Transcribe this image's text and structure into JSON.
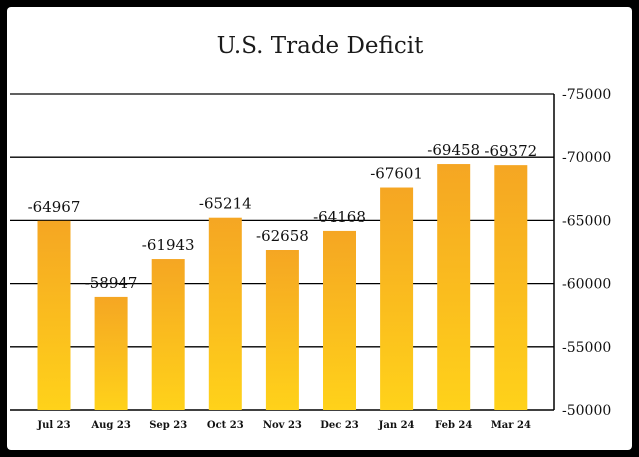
{
  "chart_data": {
    "type": "bar",
    "title": "U.S. Trade Deficit",
    "xlabel": "",
    "ylabel": "",
    "categories": [
      "Jul 23",
      "Aug 23",
      "Sep 23",
      "Oct 23",
      "Nov 23",
      "Dec 23",
      "Jan 24",
      "Feb 24",
      "Mar 24"
    ],
    "values": [
      -64967,
      -58947,
      -61943,
      -65214,
      -62658,
      -64168,
      -67601,
      -69458,
      -69372
    ],
    "data_labels": [
      "-64967",
      "-58947",
      "-61943",
      "-65214",
      "-62658",
      "-64168",
      "-67601",
      "-69458",
      "-69372"
    ],
    "yticks": [
      -75000,
      -70000,
      -65000,
      -60000,
      -55000,
      -50000
    ],
    "ytick_labels": [
      "-75000",
      "-70000",
      "-65000",
      "-60000",
      "-55000",
      "-50000"
    ],
    "ylim": [
      -50000,
      -75000
    ],
    "y_axis_inverted": true,
    "y_axis_position": "right",
    "grid": true,
    "legend": "none",
    "colors": {
      "bar_top": "#f5a623",
      "bar_bottom": "#ffd21a",
      "gridline": "#000000",
      "background": "#ffffff",
      "border": "#000000"
    }
  }
}
